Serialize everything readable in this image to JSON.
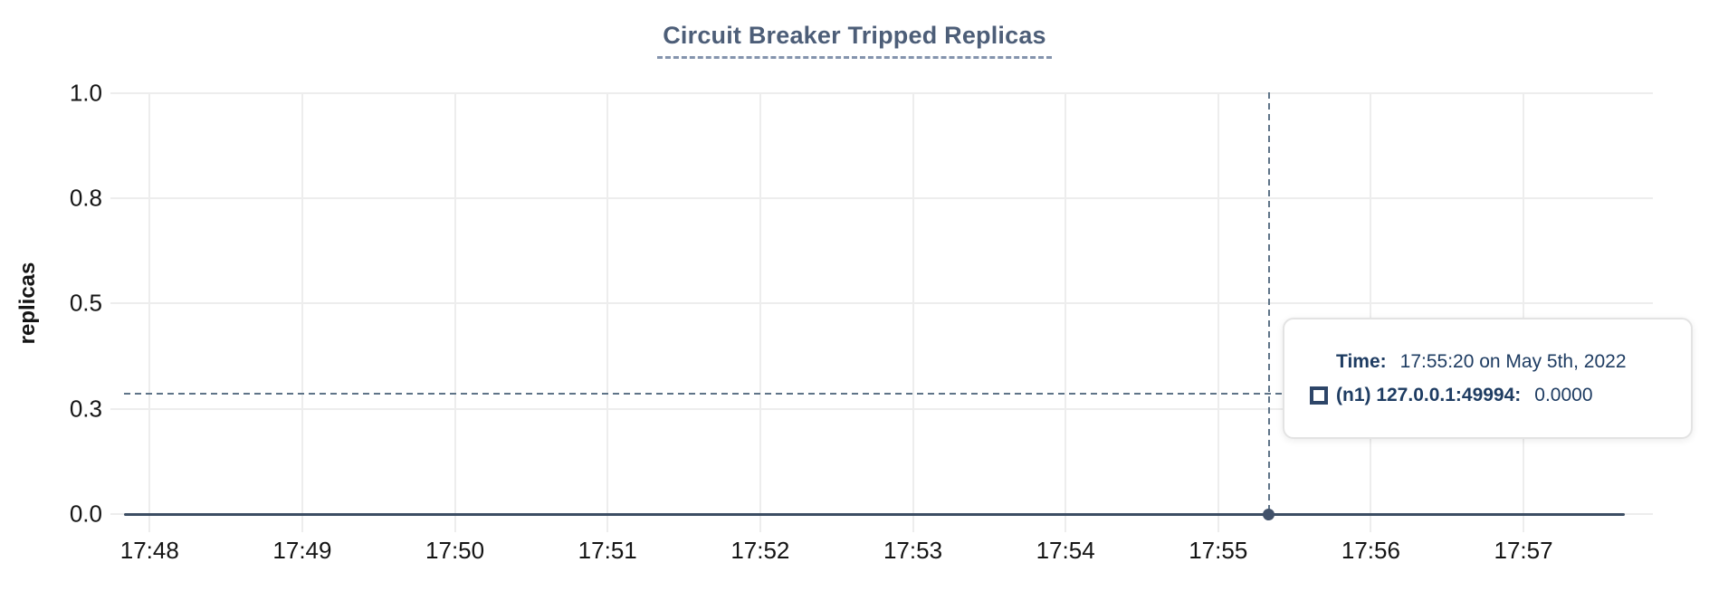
{
  "chart": {
    "title": "Circuit Breaker Tripped Replicas",
    "ylabel": "replicas"
  },
  "chart_data": {
    "type": "line",
    "title": "Circuit Breaker Tripped Replicas",
    "xlabel": "",
    "ylabel": "replicas",
    "x_ticks": [
      "17:48",
      "17:49",
      "17:50",
      "17:51",
      "17:52",
      "17:53",
      "17:54",
      "17:55",
      "17:56",
      "17:57"
    ],
    "y_ticks": [
      "1.0",
      "0.8",
      "0.5",
      "0.3",
      "0.0"
    ],
    "y_tick_values": [
      1.0,
      0.75,
      0.5,
      0.25,
      0.0
    ],
    "ylim": [
      0,
      1
    ],
    "grid": true,
    "legend_position": "tooltip",
    "series": [
      {
        "name": "(n1) 127.0.0.1:49994",
        "color": "#3c4d63",
        "points": [
          [
            "17:47:50",
            0
          ],
          [
            "17:57:40",
            0
          ]
        ]
      }
    ],
    "crosshair": {
      "time": "17:55:20",
      "hover_value": 0.285,
      "snapped_point_value": 0
    }
  },
  "tooltip": {
    "time_label": "Time:",
    "time_value": "17:55:20 on May 5th, 2022",
    "series_label": "(n1) 127.0.0.1:49994:",
    "series_value": "0.0000"
  },
  "colors": {
    "title": "#4d5e78",
    "title_underline": "#8494ad",
    "grid": "#ededed",
    "axis_text": "#141414",
    "series_line": "#3c4d63",
    "crosshair": "#5f7488",
    "tooltip_text": "#1e3c62",
    "tooltip_border": "#e3e3e3",
    "marker_border": "#2d4568"
  }
}
